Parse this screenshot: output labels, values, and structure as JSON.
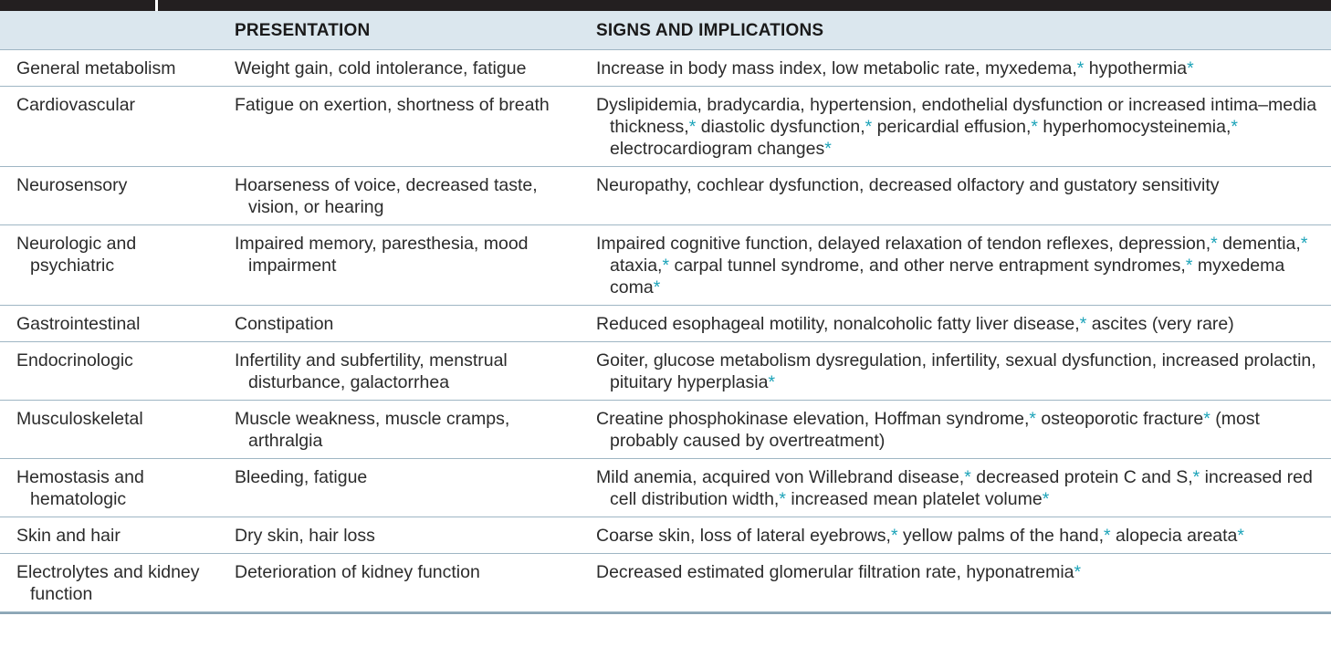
{
  "headers": {
    "category": "",
    "presentation": "PRESENTATION",
    "signs": "SIGNS AND IMPLICATIONS"
  },
  "colors": {
    "header_bg": "#dbe7ee",
    "asterisk": "#1ea4b9",
    "top_bar": "#231f20"
  },
  "rows": [
    {
      "category": "General metabolism",
      "presentation": "Weight gain, cold intolerance, fatigue",
      "signs": [
        {
          "t": "Increase in body mass index, low metabolic rate, myxedema,"
        },
        {
          "s": "*"
        },
        {
          "t": " hypothermia"
        },
        {
          "s": "*"
        }
      ]
    },
    {
      "category": "Cardiovascular",
      "presentation": "Fatigue on exertion, shortness of breath",
      "signs": [
        {
          "t": "Dyslipidemia, bradycardia, hypertension, endothelial dysfunction or increased intima–media thickness,"
        },
        {
          "s": "*"
        },
        {
          "t": " diastolic dysfunction,"
        },
        {
          "s": "*"
        },
        {
          "t": " pericardial effusion,"
        },
        {
          "s": "*"
        },
        {
          "t": " hyperhomocysteinemia,"
        },
        {
          "s": "*"
        },
        {
          "t": " electrocardiogram changes"
        },
        {
          "s": "*"
        }
      ]
    },
    {
      "category": "Neurosensory",
      "presentation": "Hoarseness of voice, decreased taste, vision, or hearing",
      "signs": [
        {
          "t": "Neuropathy, cochlear dysfunction, decreased olfactory and gustatory sensitivity"
        }
      ]
    },
    {
      "category": "Neurologic and psychiatric",
      "presentation": "Impaired memory, paresthesia, mood impairment",
      "signs": [
        {
          "t": "Impaired cognitive function, delayed relaxation of tendon reflexes, depression,"
        },
        {
          "s": "*"
        },
        {
          "t": " dementia,"
        },
        {
          "s": "*"
        },
        {
          "t": " ataxia,"
        },
        {
          "s": "*"
        },
        {
          "t": " carpal tunnel syndrome, and other nerve entrapment syndromes,"
        },
        {
          "s": "*"
        },
        {
          "t": " myxedema coma"
        },
        {
          "s": "*"
        }
      ]
    },
    {
      "category": "Gastrointestinal",
      "presentation": "Constipation",
      "signs": [
        {
          "t": "Reduced esophageal motility, nonalcoholic fatty liver disease,"
        },
        {
          "s": "*"
        },
        {
          "t": " ascites (very rare)"
        }
      ]
    },
    {
      "category": "Endocrinologic",
      "presentation": "Infertility and subfertility, menstrual disturbance, galactorrhea",
      "signs": [
        {
          "t": "Goiter, glucose metabolism dysregulation, infertility, sexual dysfunction, increased prolactin, pituitary hyperplasia"
        },
        {
          "s": "*"
        }
      ]
    },
    {
      "category": "Musculoskeletal",
      "presentation": "Muscle weakness, muscle cramps, arthralgia",
      "signs": [
        {
          "t": "Creatine phosphokinase elevation, Hoffman syndrome,"
        },
        {
          "s": "*"
        },
        {
          "t": " osteoporotic fracture"
        },
        {
          "s": "*"
        },
        {
          "t": " (most probably caused by overtreatment)"
        }
      ]
    },
    {
      "category": "Hemostasis and hematologic",
      "presentation": "Bleeding, fatigue",
      "signs": [
        {
          "t": "Mild anemia, acquired von Willebrand disease,"
        },
        {
          "s": "*"
        },
        {
          "t": " decreased protein C and S,"
        },
        {
          "s": "*"
        },
        {
          "t": " increased red cell distribution width,"
        },
        {
          "s": "*"
        },
        {
          "t": " increased mean platelet volume"
        },
        {
          "s": "*"
        }
      ]
    },
    {
      "category": "Skin and hair",
      "presentation": "Dry skin, hair loss",
      "signs": [
        {
          "t": "Coarse skin, loss of lateral eyebrows,"
        },
        {
          "s": "*"
        },
        {
          "t": " yellow palms of the hand,"
        },
        {
          "s": "*"
        },
        {
          "t": " alopecia areata"
        },
        {
          "s": "*"
        }
      ]
    },
    {
      "category": "Electrolytes and kidney function",
      "presentation": "Deterioration of kidney function",
      "signs": [
        {
          "t": "Decreased estimated glomerular filtration rate, hyponatremia"
        },
        {
          "s": "*"
        }
      ]
    }
  ]
}
